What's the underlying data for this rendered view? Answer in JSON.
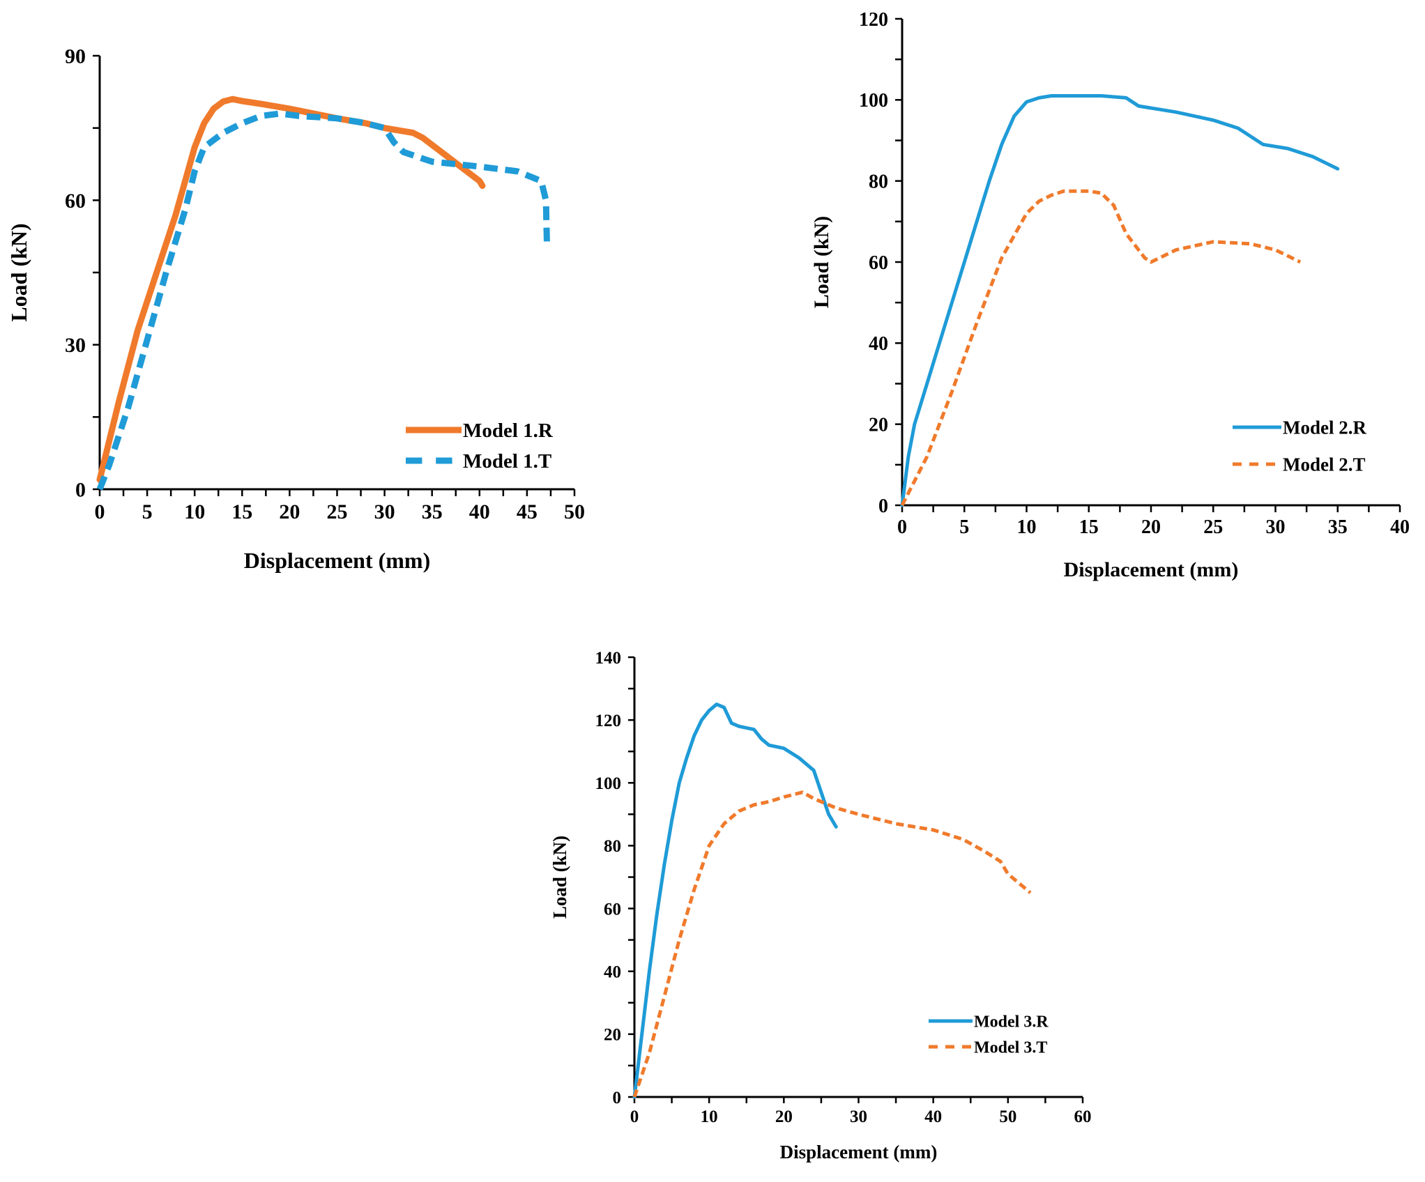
{
  "colors": {
    "orange": "#F07A2B",
    "blue": "#1F9BD7",
    "axis": "#000000"
  },
  "chart_data": [
    {
      "type": "line",
      "xlabel": "Displacement (mm)",
      "ylabel": "Load (kN)",
      "xlim": [
        0,
        50
      ],
      "ylim": [
        0,
        90
      ],
      "xticks": [
        0,
        5,
        10,
        15,
        20,
        25,
        30,
        35,
        40,
        45,
        50
      ],
      "yticks": [
        0,
        30,
        60,
        90
      ],
      "legend_position": "bottom-right",
      "series": [
        {
          "name": "Model 1.R",
          "color": "#F07A2B",
          "style": "solid",
          "x": [
            0,
            2,
            4,
            6,
            8,
            9,
            10,
            11,
            12,
            13,
            14,
            15,
            17,
            20,
            25,
            28,
            30,
            33,
            34,
            36,
            38,
            40,
            40.3
          ],
          "y": [
            2,
            18,
            33,
            45,
            57,
            64,
            71,
            76,
            79,
            80.5,
            81,
            80.6,
            80,
            79,
            77,
            76,
            75,
            74,
            73,
            70,
            67,
            64,
            63
          ]
        },
        {
          "name": "Model 1.T",
          "color": "#1F9BD7",
          "style": "dashed",
          "x": [
            0,
            1,
            3,
            5,
            7,
            9,
            10,
            11,
            13,
            15,
            17,
            19,
            21,
            25,
            28,
            30,
            31,
            32,
            35,
            40,
            44,
            46.5,
            47,
            47.1
          ],
          "y": [
            0,
            5,
            17,
            31,
            45,
            58,
            66,
            71,
            74,
            76,
            77.5,
            78,
            77.5,
            77,
            76,
            75,
            72,
            70,
            68,
            67,
            66,
            64,
            60,
            51
          ]
        }
      ]
    },
    {
      "type": "line",
      "xlabel": "Displacement (mm)",
      "ylabel": "Load (kN)",
      "xlim": [
        0,
        40
      ],
      "ylim": [
        0,
        120
      ],
      "xticks": [
        0,
        5,
        10,
        15,
        20,
        25,
        30,
        35,
        40
      ],
      "yticks": [
        0,
        20,
        40,
        60,
        80,
        100,
        120
      ],
      "legend_position": "bottom-right",
      "series": [
        {
          "name": "Model 2.R",
          "color": "#1F9BD7",
          "style": "solid",
          "x": [
            0,
            0.5,
            1,
            2,
            3,
            4,
            5,
            6,
            7,
            8,
            9,
            10,
            11,
            12,
            14,
            16,
            18,
            19,
            22,
            25,
            27,
            29,
            31,
            33,
            35
          ],
          "y": [
            0,
            12,
            20,
            30,
            40,
            50,
            60,
            70,
            80,
            89,
            96,
            99.5,
            100.5,
            101,
            101,
            101,
            100.5,
            98.5,
            97,
            95,
            93,
            89,
            88,
            86,
            83
          ]
        },
        {
          "name": "Model 2.T",
          "color": "#F07A2B",
          "style": "dashed",
          "x": [
            0,
            2,
            4,
            6,
            8,
            10,
            11,
            12,
            13,
            14,
            15,
            16,
            17,
            18,
            19.5,
            20,
            22,
            25,
            28,
            30,
            32
          ],
          "y": [
            0,
            12,
            28,
            45,
            61,
            72,
            75,
            76.5,
            77.5,
            77.5,
            77.5,
            77,
            74,
            67,
            61,
            60,
            63,
            65,
            64.5,
            63,
            60
          ]
        }
      ]
    },
    {
      "type": "line",
      "xlabel": "Displacement (mm)",
      "ylabel": "Load (kN)",
      "xlim": [
        0,
        60
      ],
      "ylim": [
        0,
        140
      ],
      "xticks": [
        0,
        10,
        20,
        30,
        40,
        50,
        60
      ],
      "yticks": [
        0,
        20,
        40,
        60,
        80,
        100,
        120,
        140
      ],
      "legend_position": "bottom-right",
      "series": [
        {
          "name": "Model 3.R",
          "color": "#1F9BD7",
          "style": "solid",
          "x": [
            0,
            1,
            2,
            3,
            4,
            5,
            6,
            7,
            8,
            9,
            10,
            11,
            12,
            13,
            14,
            16,
            17,
            18,
            20,
            22,
            24,
            25,
            26,
            27
          ],
          "y": [
            0,
            20,
            40,
            58,
            74,
            88,
            100,
            108,
            115,
            120,
            123,
            125,
            124,
            119,
            118,
            117,
            114,
            112,
            111,
            108,
            104,
            97,
            90,
            86
          ]
        },
        {
          "name": "Model 3.T",
          "color": "#F07A2B",
          "style": "dashed",
          "x": [
            0,
            2,
            4,
            6,
            8,
            10,
            12,
            14,
            16,
            18,
            20,
            22.5,
            24,
            27,
            30,
            35,
            40,
            44,
            47,
            49,
            50,
            52,
            53
          ],
          "y": [
            0,
            14,
            32,
            50,
            66,
            80,
            87,
            91,
            93,
            94,
            95.5,
            97,
            95,
            92,
            90,
            87,
            85,
            82,
            78,
            75,
            71,
            67,
            65
          ]
        }
      ]
    }
  ]
}
